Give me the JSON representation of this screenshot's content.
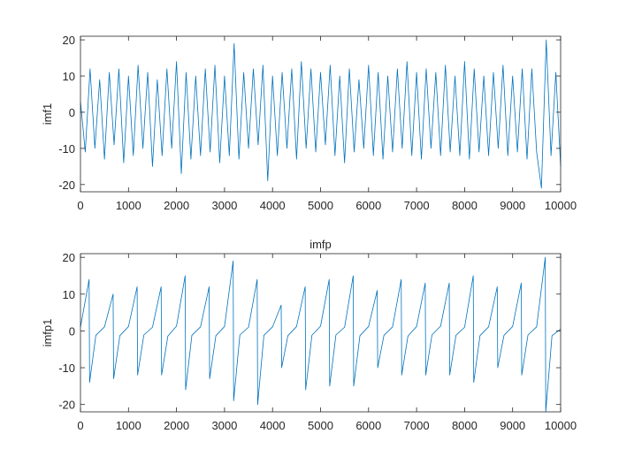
{
  "chart_data": [
    {
      "type": "line",
      "ylabel": "imf1",
      "color": "#0072bd",
      "xlim": [
        0,
        10000
      ],
      "ylim": [
        -22,
        21
      ],
      "xticks": [
        0,
        1000,
        2000,
        3000,
        4000,
        5000,
        6000,
        7000,
        8000,
        9000,
        10000
      ],
      "yticks": [
        -20,
        -10,
        0,
        10,
        20
      ],
      "x": [
        0,
        100,
        200,
        300,
        400,
        500,
        600,
        700,
        800,
        900,
        1000,
        1100,
        1200,
        1300,
        1400,
        1500,
        1600,
        1700,
        1800,
        1900,
        2000,
        2100,
        2200,
        2300,
        2400,
        2500,
        2600,
        2700,
        2800,
        2900,
        3000,
        3100,
        3200,
        3300,
        3400,
        3500,
        3600,
        3700,
        3800,
        3900,
        4000,
        4100,
        4200,
        4300,
        4400,
        4500,
        4600,
        4700,
        4800,
        4900,
        5000,
        5100,
        5200,
        5300,
        5400,
        5500,
        5600,
        5700,
        5800,
        5900,
        6000,
        6100,
        6200,
        6300,
        6400,
        6500,
        6600,
        6700,
        6800,
        6900,
        7000,
        7100,
        7200,
        7300,
        7400,
        7500,
        7600,
        7700,
        7800,
        7900,
        8000,
        8100,
        8200,
        8300,
        8400,
        8500,
        8600,
        8700,
        8800,
        8900,
        9000,
        9100,
        9200,
        9300,
        9400,
        9500,
        9600,
        9700,
        9800,
        9900,
        10000
      ],
      "values": [
        3,
        -11,
        12,
        -10,
        9,
        -13,
        11,
        -9,
        12,
        -14,
        10,
        -12,
        13,
        -10,
        11,
        -15,
        9,
        -12,
        12,
        -10,
        14,
        -17,
        11,
        -13,
        10,
        -12,
        12,
        -11,
        13,
        -14,
        10,
        -12,
        19,
        -13,
        11,
        -10,
        12,
        -9,
        13,
        -19,
        10,
        -12,
        11,
        -10,
        12,
        -13,
        14,
        -10,
        12,
        -11,
        11,
        -9,
        13,
        -12,
        10,
        -14,
        12,
        -11,
        9,
        -10,
        13,
        -12,
        11,
        -13,
        10,
        -11,
        12,
        -10,
        14,
        -12,
        11,
        -13,
        12,
        -10,
        11,
        -12,
        13,
        -11,
        10,
        -12,
        14,
        -13,
        12,
        -11,
        10,
        -12,
        11,
        -10,
        13,
        -12,
        10,
        -11,
        12,
        -13,
        12,
        -11,
        -21,
        20,
        -12,
        11,
        -15
      ]
    },
    {
      "type": "line",
      "title": "imfp",
      "ylabel": "imfp1",
      "color": "#0072bd",
      "xlim": [
        0,
        10000
      ],
      "ylim": [
        -22,
        21
      ],
      "xticks": [
        0,
        1000,
        2000,
        3000,
        4000,
        5000,
        6000,
        7000,
        8000,
        9000,
        10000
      ],
      "yticks": [
        -20,
        -10,
        0,
        10,
        20
      ],
      "x": [
        0,
        180,
        190,
        320,
        500,
        680,
        690,
        820,
        1000,
        1180,
        1190,
        1320,
        1500,
        1680,
        1690,
        1820,
        2000,
        2180,
        2190,
        2320,
        2500,
        2680,
        2690,
        2820,
        3000,
        3180,
        3190,
        3320,
        3500,
        3680,
        3690,
        3820,
        4000,
        4180,
        4190,
        4320,
        4500,
        4680,
        4690,
        4820,
        5000,
        5180,
        5190,
        5320,
        5500,
        5680,
        5690,
        5820,
        6000,
        6180,
        6190,
        6320,
        6500,
        6680,
        6690,
        6820,
        7000,
        7180,
        7190,
        7320,
        7500,
        7680,
        7690,
        7820,
        8000,
        8180,
        8190,
        8320,
        8500,
        8680,
        8690,
        8820,
        9000,
        9180,
        9190,
        9320,
        9500,
        9680,
        9690,
        9820,
        10000
      ],
      "values": [
        1,
        14,
        -14,
        -1.2,
        1.1,
        10,
        -13,
        -1.3,
        1.2,
        12,
        -12,
        -1.1,
        1,
        12,
        -12,
        -1.4,
        1.3,
        15,
        -16,
        -1.2,
        1.1,
        12,
        -13,
        -1.3,
        1.2,
        19,
        -19,
        -1.1,
        1,
        14,
        -20,
        -1.2,
        1.1,
        7,
        -10,
        -1.3,
        1.2,
        12,
        -16,
        -1.2,
        1.3,
        14,
        -15,
        -1.1,
        1,
        15,
        -15,
        -1.3,
        1.2,
        11,
        -10,
        -1.2,
        1.1,
        14,
        -12,
        -1.4,
        1.2,
        13,
        -12,
        -1.1,
        1.3,
        13,
        -12,
        -1.2,
        1,
        15,
        -14,
        -1.3,
        1.1,
        12,
        -10,
        -1.2,
        1.2,
        13,
        -12,
        -1.1,
        1.1,
        20,
        -22,
        -1.3,
        0.5
      ]
    }
  ]
}
